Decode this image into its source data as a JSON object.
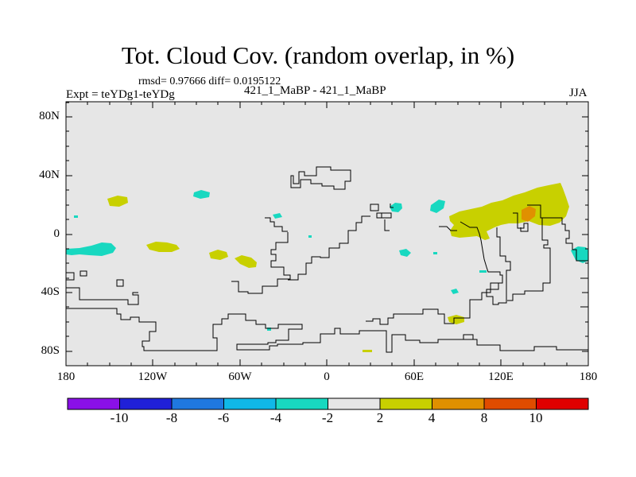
{
  "header": {
    "title": "Tot. Cloud Cov. (random overlap, in %)",
    "stats": "rmsd= 0.97666 diff= 0.0195122",
    "runs": "421_1_MaBP - 421_1_MaBP",
    "experiment": "Expt = teYDg1-teYDg",
    "season": "JJA"
  },
  "axes": {
    "y_labels": [
      "80N",
      "40N",
      "0",
      "40S",
      "80S"
    ],
    "x_labels": [
      "180",
      "120W",
      "60W",
      "0",
      "60E",
      "120E",
      "180"
    ]
  },
  "colorbar": {
    "labels": [
      "-10",
      "-8",
      "-6",
      "-4",
      "-2",
      "2",
      "4",
      "8",
      "10"
    ],
    "colors": [
      "#8a10e8",
      "#2020d8",
      "#1f78e0",
      "#10b8e8",
      "#18d8c0",
      "#e6e6e6",
      "#c8d000",
      "#e09000",
      "#e04c00",
      "#e00000"
    ]
  },
  "colors": {
    "background": "#e6e6e6",
    "cyan": "#18d8c0",
    "yellow": "#c8d000",
    "orange": "#e09000"
  }
}
